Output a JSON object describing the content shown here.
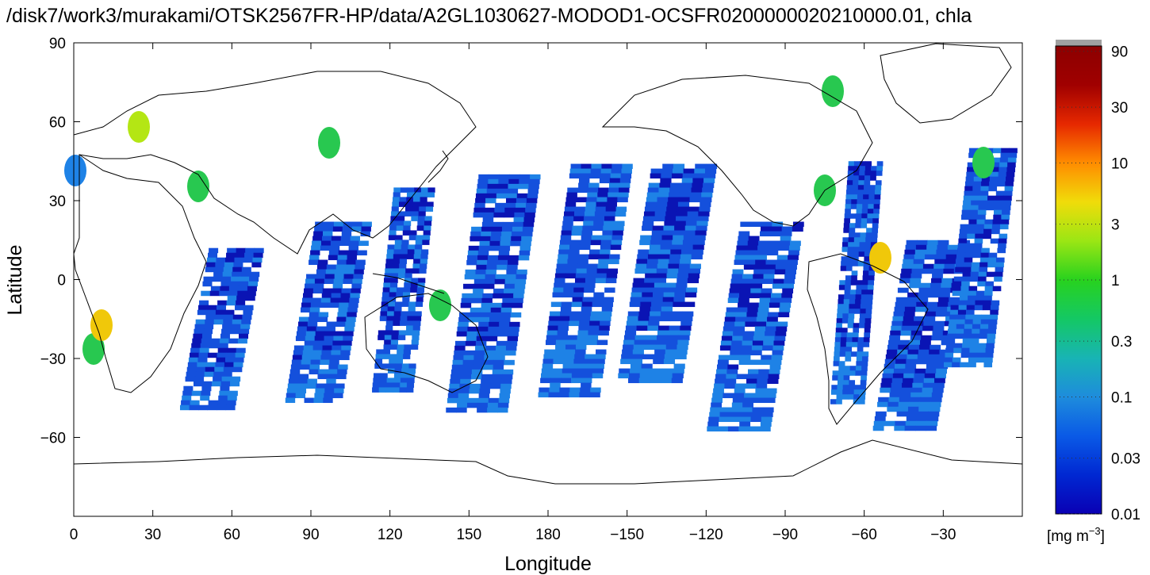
{
  "title": "/disk7/work3/murakami/OTSK2567FR-HP/data/A2GL1030627-MODOD1-OCSFR0200000020210000.01, chla",
  "x_axis": {
    "label": "Longitude",
    "ticks": [
      {
        "lon": 0,
        "label": "0"
      },
      {
        "lon": 30,
        "label": "30"
      },
      {
        "lon": 60,
        "label": "60"
      },
      {
        "lon": 90,
        "label": "90"
      },
      {
        "lon": 120,
        "label": "120"
      },
      {
        "lon": 150,
        "label": "150"
      },
      {
        "lon": 180,
        "label": "180"
      },
      {
        "lon": 210,
        "label": "−150"
      },
      {
        "lon": 240,
        "label": "−120"
      },
      {
        "lon": 270,
        "label": "−90"
      },
      {
        "lon": 300,
        "label": "−60"
      },
      {
        "lon": 330,
        "label": "−30"
      }
    ],
    "range": [
      0,
      360
    ]
  },
  "y_axis": {
    "label": "Latitude",
    "ticks": [
      {
        "lat": 90,
        "label": "90"
      },
      {
        "lat": 60,
        "label": "60"
      },
      {
        "lat": 30,
        "label": "30"
      },
      {
        "lat": 0,
        "label": "0"
      },
      {
        "lat": -30,
        "label": "−30"
      },
      {
        "lat": -60,
        "label": "−60"
      }
    ],
    "range": [
      -90,
      90
    ]
  },
  "colorbar": {
    "unit_label": "[mg m",
    "unit_exponent": "−3",
    "unit_close": "]",
    "scale": "log",
    "range": [
      0.01,
      100
    ],
    "ticks": [
      {
        "value": 90,
        "label": "90"
      },
      {
        "value": 30,
        "label": "30"
      },
      {
        "value": 10,
        "label": "10"
      },
      {
        "value": 3,
        "label": "3"
      },
      {
        "value": 1,
        "label": "1"
      },
      {
        "value": 0.3,
        "label": "0.3"
      },
      {
        "value": 0.1,
        "label": "0.1"
      },
      {
        "value": 0.03,
        "label": "0.03"
      },
      {
        "value": 0.01,
        "label": "0.01"
      }
    ],
    "colors": [
      "#0a00b4",
      "#0028d2",
      "#0a5ae6",
      "#1e8cdc",
      "#18b4b4",
      "#14c864",
      "#28d21e",
      "#9be614",
      "#f0dc0a",
      "#ff8c00",
      "#e62800",
      "#a00000",
      "#8c0000"
    ],
    "over_color": "#a0a0a0"
  },
  "map_colors": {
    "very_low": "#0a14b4",
    "low": "#1450dc",
    "mid_low": "#1e82e6",
    "mid": "#1eb4b4",
    "mid_high": "#28c850",
    "high": "#b4e614",
    "very_high": "#f0c80a"
  },
  "swaths": [
    {
      "lon": [
        40,
        72
      ],
      "lat": [
        -50,
        12
      ]
    },
    {
      "lon": [
        80,
        113
      ],
      "lat": [
        -47,
        22
      ]
    },
    {
      "lon": [
        113,
        137
      ],
      "lat": [
        -43,
        35
      ]
    },
    {
      "lon": [
        141,
        177
      ],
      "lat": [
        -50,
        40
      ]
    },
    {
      "lon": [
        176,
        212
      ],
      "lat": [
        -45,
        44
      ]
    },
    {
      "lon": [
        206,
        244
      ],
      "lat": [
        -40,
        44
      ]
    },
    {
      "lon": [
        240,
        277
      ],
      "lat": [
        -57,
        22
      ]
    },
    {
      "lon": [
        287,
        307
      ],
      "lat": [
        -47,
        45
      ]
    },
    {
      "lon": [
        303,
        340
      ],
      "lat": [
        -57,
        15
      ]
    },
    {
      "lon": [
        330,
        358
      ],
      "lat": [
        -33,
        50
      ]
    }
  ]
}
